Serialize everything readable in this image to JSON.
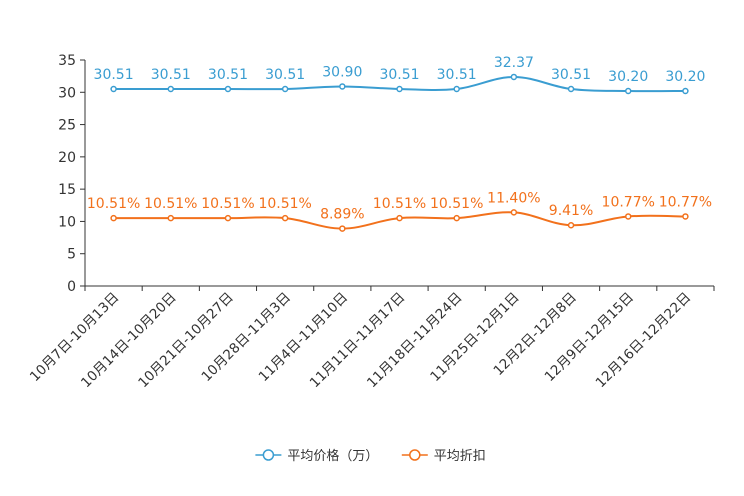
{
  "chart_data": {
    "type": "line",
    "title": "",
    "xlabel": "",
    "ylabel": "",
    "ylim": [
      0,
      35
    ],
    "yticks": [
      0,
      5,
      10,
      15,
      20,
      25,
      30,
      35
    ],
    "grid": false,
    "legend_position": "bottom-center",
    "categories": [
      "10月7日-10月13日",
      "10月14日-10月20日",
      "10月21日-10月27日",
      "10月28日-11月3日",
      "11月4日-11月10日",
      "11月11日-11月17日",
      "11月18日-11月24日",
      "11月25日-12月1日",
      "12月2日-12月8日",
      "12月9日-12月15日",
      "12月16日-12月22日"
    ],
    "series": [
      {
        "name": "平均价格（万）",
        "color": "#3a9dd1",
        "values": [
          30.51,
          30.51,
          30.51,
          30.51,
          30.9,
          30.51,
          30.51,
          32.37,
          30.51,
          30.2,
          30.2
        ],
        "labels": [
          "30.51",
          "30.51",
          "30.51",
          "30.51",
          "30.90",
          "30.51",
          "30.51",
          "32.37",
          "30.51",
          "30.20",
          "30.20"
        ]
      },
      {
        "name": "平均折扣",
        "color": "#f2711c",
        "values": [
          10.51,
          10.51,
          10.51,
          10.51,
          8.89,
          10.51,
          10.51,
          11.4,
          9.41,
          10.77,
          10.77
        ],
        "labels": [
          "10.51%",
          "10.51%",
          "10.51%",
          "10.51%",
          "8.89%",
          "10.51%",
          "10.51%",
          "11.40%",
          "9.41%",
          "10.77%",
          "10.77%"
        ]
      }
    ]
  }
}
